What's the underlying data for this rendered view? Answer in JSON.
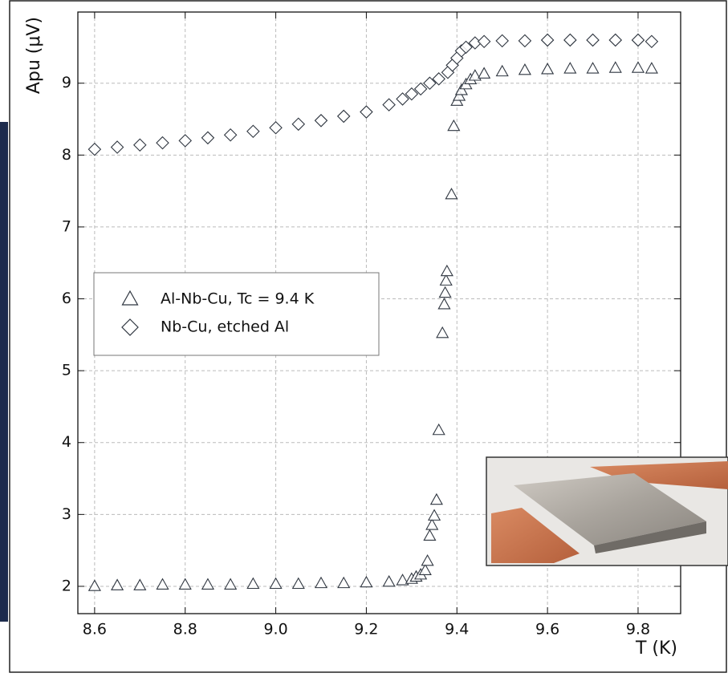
{
  "chart_data": {
    "type": "scatter",
    "xlabel": "T (K)",
    "ylabel": "Apu (μV)",
    "xlim": [
      8.563,
      9.894
    ],
    "ylim": [
      1.62,
      9.99
    ],
    "xticks": [
      8.6,
      8.8,
      {
        "value": 9,
        "label": "9.0"
      },
      9.2,
      9.4,
      9.6,
      9.8
    ],
    "yticks": [
      2,
      3,
      4,
      5,
      6,
      7,
      8,
      9
    ],
    "grid": true,
    "legend": "center left",
    "series": [
      {
        "name": "Al-Nb-Cu, Tc = 9.4 K",
        "marker": "triangle",
        "color": "#2f3640",
        "x": [
          8.6,
          8.65,
          8.7,
          8.75,
          8.8,
          8.85,
          8.9,
          8.95,
          9.0,
          9.05,
          9.1,
          9.15,
          9.2,
          9.25,
          9.28,
          9.3,
          9.31,
          9.32,
          9.33,
          9.335,
          9.34,
          9.345,
          9.35,
          9.355,
          9.36,
          9.368,
          9.372,
          9.374,
          9.376,
          9.378,
          9.388,
          9.393,
          9.4,
          9.405,
          9.41,
          9.42,
          9.43,
          9.44,
          9.46,
          9.5,
          9.55,
          9.6,
          9.65,
          9.7,
          9.75,
          9.8,
          9.83
        ],
        "values": [
          2.0,
          2.01,
          2.01,
          2.02,
          2.02,
          2.02,
          2.02,
          2.03,
          2.03,
          2.03,
          2.04,
          2.04,
          2.05,
          2.06,
          2.08,
          2.1,
          2.13,
          2.16,
          2.22,
          2.35,
          2.7,
          2.85,
          2.98,
          3.2,
          4.17,
          5.52,
          5.92,
          6.08,
          6.25,
          6.38,
          7.45,
          8.4,
          8.75,
          8.82,
          8.9,
          8.98,
          9.05,
          9.1,
          9.13,
          9.16,
          9.18,
          9.19,
          9.2,
          9.2,
          9.21,
          9.21,
          9.2
        ]
      },
      {
        "name": "Nb-Cu, etched Al",
        "marker": "diamond",
        "color": "#2f3640",
        "x": [
          8.6,
          8.65,
          8.7,
          8.75,
          8.8,
          8.85,
          8.9,
          8.95,
          9.0,
          9.05,
          9.1,
          9.15,
          9.2,
          9.25,
          9.28,
          9.3,
          9.32,
          9.34,
          9.36,
          9.38,
          9.39,
          9.4,
          9.41,
          9.42,
          9.44,
          9.46,
          9.5,
          9.55,
          9.6,
          9.65,
          9.7,
          9.75,
          9.8,
          9.83
        ],
        "values": [
          8.08,
          8.11,
          8.14,
          8.17,
          8.2,
          8.24,
          8.28,
          8.33,
          8.38,
          8.43,
          8.48,
          8.54,
          8.6,
          8.7,
          8.78,
          8.85,
          8.92,
          9.0,
          9.06,
          9.15,
          9.25,
          9.35,
          9.45,
          9.5,
          9.56,
          9.58,
          9.59,
          9.59,
          9.6,
          9.6,
          9.6,
          9.6,
          9.6,
          9.58
        ]
      }
    ]
  }
}
